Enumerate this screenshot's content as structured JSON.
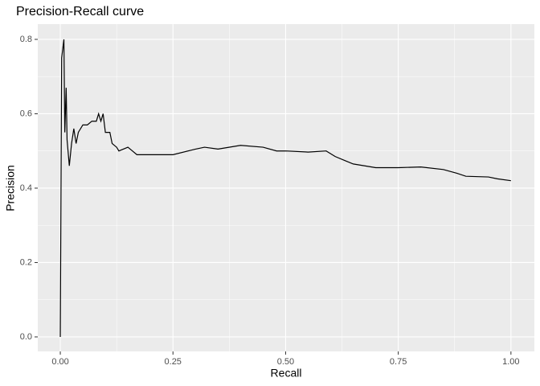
{
  "chart_data": {
    "type": "line",
    "title": "Precision-Recall curve",
    "x_label": "Recall",
    "y_label": "Precision",
    "x": [
      0,
      0.003,
      0.008,
      0.01,
      0.013,
      0.015,
      0.02,
      0.025,
      0.03,
      0.035,
      0.04,
      0.05,
      0.06,
      0.07,
      0.08,
      0.085,
      0.09,
      0.095,
      0.1,
      0.11,
      0.115,
      0.125,
      0.13,
      0.15,
      0.16,
      0.17,
      0.2,
      0.25,
      0.3,
      0.32,
      0.35,
      0.4,
      0.45,
      0.48,
      0.5,
      0.55,
      0.59,
      0.61,
      0.63,
      0.65,
      0.7,
      0.75,
      0.8,
      0.85,
      0.88,
      0.9,
      0.95,
      0.97,
      1.0
    ],
    "series": [
      {
        "name": "Precision",
        "color": "#000000",
        "values": [
          0,
          0.75,
          0.8,
          0.55,
          0.67,
          0.53,
          0.46,
          0.52,
          0.56,
          0.52,
          0.55,
          0.57,
          0.57,
          0.58,
          0.58,
          0.6,
          0.58,
          0.6,
          0.55,
          0.55,
          0.52,
          0.51,
          0.5,
          0.51,
          0.5,
          0.49,
          0.49,
          0.49,
          0.505,
          0.51,
          0.505,
          0.515,
          0.51,
          0.5,
          0.5,
          0.497,
          0.5,
          0.485,
          0.475,
          0.465,
          0.455,
          0.455,
          0.457,
          0.45,
          0.44,
          0.432,
          0.43,
          0.425,
          0.42
        ]
      }
    ],
    "xlim": [
      -0.05,
      1.052
    ],
    "ylim": [
      -0.039,
      0.841
    ],
    "xticks": [
      {
        "value": 0,
        "label": "0.00"
      },
      {
        "value": 0.25,
        "label": "0.25"
      },
      {
        "value": 0.5,
        "label": "0.50"
      },
      0.75,
      {
        "value": 1,
        "label": "1.00"
      }
    ],
    "yticks": [
      {
        "value": 0,
        "label": "0.0"
      },
      0.2,
      0.4,
      0.6,
      0.8
    ],
    "grid": true
  }
}
